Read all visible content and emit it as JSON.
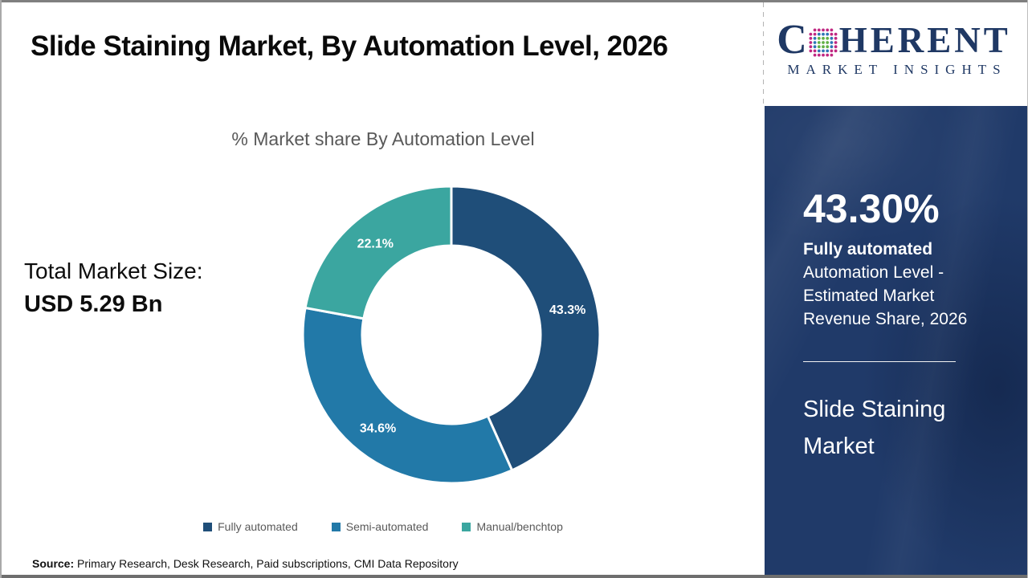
{
  "page": {
    "title": "Slide Staining Market, By Automation Level, 2026",
    "source_label": "Source:",
    "source_text": " Primary Research, Desk Research, Paid subscriptions, CMI Data Repository"
  },
  "logo": {
    "brand_prefix": "C",
    "brand_suffix": "HERENT",
    "subtitle": "MARKET INSIGHTS",
    "text_color": "#1F3864",
    "globe_colors": {
      "center": "#62B146",
      "mid": "#2E75B6",
      "outer": "#C02882"
    }
  },
  "left_panel": {
    "total_label": "Total Market Size:",
    "total_value": "USD 5.29 Bn"
  },
  "chart_data": {
    "type": "pie",
    "donut": true,
    "title": "% Market share By Automation Level",
    "categories": [
      "Fully automated",
      "Semi-automated",
      "Manual/benchtop"
    ],
    "values": [
      43.3,
      34.6,
      22.1
    ],
    "labels": [
      "43.3%",
      "34.6%",
      "22.1%"
    ],
    "colors": [
      "#1F4E79",
      "#2279A8",
      "#3BA6A0"
    ],
    "start_angle_deg": 0,
    "direction": "clockwise",
    "legend_position": "bottom",
    "inner_radius_ratio": 0.6
  },
  "sidebar": {
    "stat_value": "43.30%",
    "stat_segment": "Fully automated",
    "stat_desc": "Automation Level - Estimated Market Revenue Share, 2026",
    "market_name": "Slide Staining Market",
    "bg_color": "#203A69"
  }
}
